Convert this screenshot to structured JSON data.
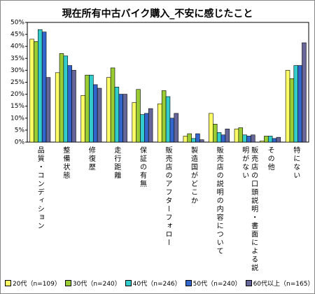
{
  "chart_data": {
    "type": "bar",
    "title": "現在所有中古バイク購入_不安に感じたこと",
    "categories": [
      "品質・コンディション",
      "整備状態",
      "修復歴",
      "走行距離",
      "保証の有無",
      "販売店のアフターフォロー",
      "製造国がどこか",
      "販売店の説明の内容について",
      "販売店の口頭説明・書面による説明がない",
      "その他",
      "特にない"
    ],
    "series": [
      {
        "name": "20代（n=109）",
        "color": "#ffff66",
        "values": [
          43,
          29,
          19.5,
          27,
          16.5,
          16,
          2.5,
          12,
          5.5,
          0.5,
          30
        ]
      },
      {
        "name": "30代（n=240）",
        "color": "#99cc33",
        "values": [
          42,
          37,
          28,
          31,
          22,
          21.5,
          3.5,
          7.5,
          6,
          2.5,
          26.5
        ]
      },
      {
        "name": "40代（n=246）",
        "color": "#33cccc",
        "values": [
          47,
          36,
          28,
          23,
          11.5,
          19,
          1.5,
          4,
          3,
          2.5,
          32
        ]
      },
      {
        "name": "50代（n=240）",
        "color": "#3366cc",
        "values": [
          46,
          32,
          24,
          20,
          12,
          10,
          3.5,
          3,
          2.5,
          1.5,
          32
        ]
      },
      {
        "name": "60代以上（n=165）",
        "color": "#666699",
        "values": [
          27,
          30,
          22.5,
          20,
          14,
          12,
          1,
          5.5,
          3,
          2,
          41.5
        ]
      }
    ],
    "ylim": [
      0,
      50
    ],
    "yticks": [
      {
        "value": 0,
        "label": "0%"
      },
      {
        "value": 5,
        "label": "5%"
      },
      {
        "value": 10,
        "label": "10%"
      },
      {
        "value": 15,
        "label": "15%"
      },
      {
        "value": 20,
        "label": "20%"
      },
      {
        "value": 25,
        "label": "25%"
      },
      {
        "value": 30,
        "label": "30%"
      },
      {
        "value": 35,
        "label": "35%"
      },
      {
        "value": 40,
        "label": "40%"
      },
      {
        "value": 45,
        "label": "45%"
      },
      {
        "value": 50,
        "label": "50%"
      }
    ]
  }
}
